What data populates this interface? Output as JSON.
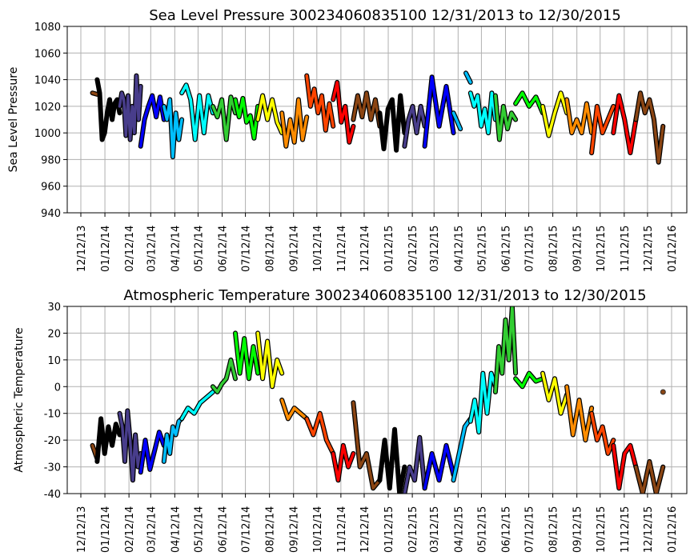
{
  "chart_data": [
    {
      "type": "line",
      "title": "Sea Level Pressure 300234060835100  12/31/2013 to 12/30/2015",
      "xlabel": "",
      "ylabel": "Sea Level Pressure",
      "ylim": [
        940,
        1080
      ],
      "yticks": [
        940,
        960,
        980,
        1000,
        1020,
        1040,
        1060,
        1080
      ],
      "grid": true,
      "x_unit": "days since 12/12/13",
      "series": [
        {
          "color": "#8b4513",
          "start": 15,
          "end": 21,
          "values": [
            1030,
            1029
          ]
        },
        {
          "color": "#000000",
          "start": 21,
          "end": 50,
          "values": [
            1040,
            1030,
            995,
            1000,
            1015,
            1025,
            1010,
            1022,
            1025,
            1015
          ]
        },
        {
          "color": "#483d8b",
          "start": 50,
          "end": 77,
          "values": [
            1020,
            1030,
            1025,
            998,
            1028,
            995,
            1020,
            1000,
            1043,
            1010,
            1035
          ]
        },
        {
          "color": "#0000ff",
          "start": 77,
          "end": 107,
          "values": [
            990,
            1010,
            1020,
            1028,
            1012,
            1027,
            1010
          ]
        },
        {
          "color": "#00bfff",
          "start": 107,
          "end": 130,
          "values": [
            1020,
            1010,
            1025,
            982,
            1015,
            995,
            1010
          ]
        },
        {
          "color": "#00ffff",
          "start": 130,
          "end": 170,
          "values": [
            1030,
            1036,
            1025,
            995,
            1028,
            1000,
            1028,
            1015
          ]
        },
        {
          "color": "#32cd32",
          "start": 170,
          "end": 199,
          "values": [
            1020,
            1012,
            1025,
            995,
            1027,
            1015
          ]
        },
        {
          "color": "#00ff00",
          "start": 199,
          "end": 228,
          "values": [
            1025,
            1012,
            1026,
            1008,
            1013,
            996,
            1020
          ]
        },
        {
          "color": "#ffff00",
          "start": 228,
          "end": 259,
          "values": [
            1010,
            1028,
            1010,
            1025,
            1008,
            1000
          ]
        },
        {
          "color": "#ff8c00",
          "start": 259,
          "end": 291,
          "values": [
            1015,
            990,
            1010,
            993,
            1025,
            995,
            1012
          ]
        },
        {
          "color": "#ff4500",
          "start": 291,
          "end": 325,
          "values": [
            1043,
            1020,
            1033,
            1015,
            1028,
            1002,
            1022,
            1005
          ]
        },
        {
          "color": "#ff0000",
          "start": 325,
          "end": 351,
          "values": [
            1025,
            1038,
            1008,
            1020,
            993,
            1005
          ]
        },
        {
          "color": "#8b4513",
          "start": 351,
          "end": 385,
          "values": [
            1010,
            1028,
            1012,
            1030,
            1010,
            1025,
            1005
          ]
        },
        {
          "color": "#000000",
          "start": 385,
          "end": 417,
          "values": [
            1015,
            988,
            1018,
            1025,
            987,
            1028,
            1000
          ]
        },
        {
          "color": "#483d8b",
          "start": 417,
          "end": 443,
          "values": [
            990,
            1010,
            1020,
            1000,
            1020,
            1005
          ]
        },
        {
          "color": "#0000ff",
          "start": 443,
          "end": 480,
          "values": [
            990,
            1042,
            1005,
            1035,
            1000
          ]
        },
        {
          "color": "#00bfff",
          "start": 480,
          "end": 489,
          "values": [
            1015,
            1003
          ]
        },
        {
          "color": "#00bfff",
          "start": 496,
          "end": 502,
          "values": [
            1045,
            1038
          ]
        },
        {
          "color": "#00ffff",
          "start": 502,
          "end": 534,
          "values": [
            1030,
            1020,
            1028,
            1005,
            1018,
            1000,
            1030,
            1010
          ]
        },
        {
          "color": "#32cd32",
          "start": 534,
          "end": 560,
          "values": [
            1028,
            995,
            1020,
            1003,
            1015,
            1010
          ]
        },
        {
          "color": "#00ff00",
          "start": 560,
          "end": 595,
          "values": [
            1022,
            1030,
            1020,
            1027,
            1015
          ]
        },
        {
          "color": "#ffff00",
          "start": 595,
          "end": 626,
          "values": [
            1020,
            998,
            1015,
            1030,
            1015
          ]
        },
        {
          "color": "#ff8c00",
          "start": 626,
          "end": 658,
          "values": [
            1025,
            1000,
            1010,
            1000,
            1022,
            1000
          ]
        },
        {
          "color": "#ff4500",
          "start": 658,
          "end": 686,
          "values": [
            985,
            1020,
            1000,
            1010,
            1020
          ]
        },
        {
          "color": "#ff0000",
          "start": 686,
          "end": 715,
          "values": [
            1000,
            1028,
            1010,
            985,
            1010
          ]
        },
        {
          "color": "#8b4513",
          "start": 715,
          "end": 750,
          "values": [
            1010,
            1030,
            1015,
            1025,
            1010,
            978,
            1005
          ]
        }
      ]
    },
    {
      "type": "line",
      "title": "Atmospheric Temperature 300234060835100  12/31/2013 to 12/30/2015",
      "xlabel": "",
      "ylabel": "Atmospheric Temperature",
      "ylim": [
        -40,
        30
      ],
      "yticks": [
        -40,
        -30,
        -20,
        -10,
        0,
        10,
        20,
        30
      ],
      "grid": true,
      "x_unit": "days since 12/12/13",
      "series": [
        {
          "color": "#8b4513",
          "start": 15,
          "end": 21,
          "values": [
            -22,
            -27
          ]
        },
        {
          "color": "#000000",
          "start": 21,
          "end": 50,
          "values": [
            -28,
            -12,
            -25,
            -15,
            -22,
            -14,
            -18
          ]
        },
        {
          "color": "#483d8b",
          "start": 50,
          "end": 77,
          "values": [
            -10,
            -15,
            -28,
            -9,
            -20,
            -35,
            -18,
            -30,
            -25
          ]
        },
        {
          "color": "#0000ff",
          "start": 77,
          "end": 107,
          "values": [
            -32,
            -20,
            -31,
            -24,
            -17,
            -22
          ]
        },
        {
          "color": "#00bfff",
          "start": 107,
          "end": 130,
          "values": [
            -28,
            -18,
            -25,
            -15,
            -18,
            -13,
            -12
          ]
        },
        {
          "color": "#00ffff",
          "start": 130,
          "end": 170,
          "values": [
            -12,
            -8,
            -10,
            -6,
            -4,
            -2
          ]
        },
        {
          "color": "#32cd32",
          "start": 170,
          "end": 199,
          "values": [
            0,
            -2,
            1,
            3,
            10,
            3
          ]
        },
        {
          "color": "#00ff00",
          "start": 199,
          "end": 228,
          "values": [
            20,
            5,
            18,
            3,
            15,
            5
          ]
        },
        {
          "color": "#ffff00",
          "start": 228,
          "end": 259,
          "values": [
            20,
            3,
            17,
            0,
            10,
            5
          ]
        },
        {
          "color": "#ff8c00",
          "start": 259,
          "end": 291,
          "values": [
            -5,
            -12,
            -8,
            -10,
            -12
          ]
        },
        {
          "color": "#ff4500",
          "start": 291,
          "end": 325,
          "values": [
            -12,
            -18,
            -10,
            -20,
            -25
          ]
        },
        {
          "color": "#ff0000",
          "start": 325,
          "end": 351,
          "values": [
            -25,
            -35,
            -22,
            -30,
            -25
          ]
        },
        {
          "color": "#8b4513",
          "start": 351,
          "end": 385,
          "values": [
            -6,
            -30,
            -25,
            -38,
            -35
          ]
        },
        {
          "color": "#000000",
          "start": 385,
          "end": 417,
          "values": [
            -35,
            -20,
            -38,
            -16,
            -40,
            -30
          ]
        },
        {
          "color": "#483d8b",
          "start": 417,
          "end": 443,
          "values": [
            -40,
            -30,
            -35,
            -19,
            -38
          ]
        },
        {
          "color": "#0000ff",
          "start": 443,
          "end": 480,
          "values": [
            -38,
            -25,
            -35,
            -22,
            -33
          ]
        },
        {
          "color": "#00bfff",
          "start": 480,
          "end": 502,
          "values": [
            -35,
            -25,
            -15,
            -12
          ]
        },
        {
          "color": "#00ffff",
          "start": 502,
          "end": 534,
          "values": [
            -13,
            -5,
            -17,
            5,
            -10,
            5,
            0
          ]
        },
        {
          "color": "#32cd32",
          "start": 534,
          "end": 560,
          "values": [
            -2,
            15,
            5,
            25,
            10,
            30,
            5
          ]
        },
        {
          "color": "#00ff00",
          "start": 560,
          "end": 595,
          "values": [
            3,
            0,
            5,
            2,
            3
          ]
        },
        {
          "color": "#ffff00",
          "start": 595,
          "end": 626,
          "values": [
            5,
            -5,
            3,
            -10,
            -3
          ]
        },
        {
          "color": "#ff8c00",
          "start": 626,
          "end": 658,
          "values": [
            0,
            -18,
            -5,
            -20,
            -8
          ]
        },
        {
          "color": "#ff4500",
          "start": 658,
          "end": 686,
          "values": [
            -10,
            -20,
            -15,
            -25,
            -20
          ]
        },
        {
          "color": "#ff0000",
          "start": 686,
          "end": 715,
          "values": [
            -22,
            -38,
            -25,
            -22,
            -30
          ]
        },
        {
          "color": "#8b4513",
          "start": 715,
          "end": 750,
          "values": [
            -30,
            -40,
            -28,
            -40,
            -30
          ]
        }
      ],
      "points": [
        {
          "color": "#8b4513",
          "x": 750,
          "y": -2
        }
      ]
    }
  ],
  "xticks": [
    {
      "label": "12/12/13",
      "day": 0
    },
    {
      "label": "01/12/14",
      "day": 31
    },
    {
      "label": "02/12/14",
      "day": 62
    },
    {
      "label": "03/12/14",
      "day": 90
    },
    {
      "label": "04/12/14",
      "day": 121
    },
    {
      "label": "05/12/14",
      "day": 151
    },
    {
      "label": "06/12/14",
      "day": 182
    },
    {
      "label": "07/12/14",
      "day": 212
    },
    {
      "label": "08/12/14",
      "day": 243
    },
    {
      "label": "09/12/14",
      "day": 274
    },
    {
      "label": "10/12/14",
      "day": 304
    },
    {
      "label": "11/12/14",
      "day": 335
    },
    {
      "label": "12/12/14",
      "day": 365
    },
    {
      "label": "01/12/15",
      "day": 396
    },
    {
      "label": "02/12/15",
      "day": 427
    },
    {
      "label": "03/12/15",
      "day": 455
    },
    {
      "label": "04/12/15",
      "day": 486
    },
    {
      "label": "05/12/15",
      "day": 516
    },
    {
      "label": "06/12/15",
      "day": 547
    },
    {
      "label": "07/12/15",
      "day": 577
    },
    {
      "label": "08/12/15",
      "day": 608
    },
    {
      "label": "09/12/15",
      "day": 639
    },
    {
      "label": "10/12/15",
      "day": 669
    },
    {
      "label": "11/12/15",
      "day": 700
    },
    {
      "label": "12/12/15",
      "day": 730
    },
    {
      "label": "01/12/16",
      "day": 761
    }
  ]
}
